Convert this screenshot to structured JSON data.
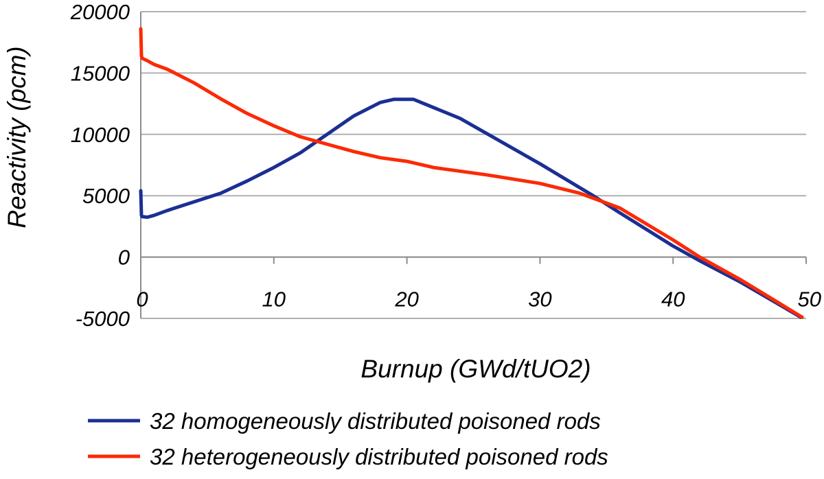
{
  "chart_data": {
    "type": "line",
    "title": "",
    "xlabel": "Burnup (GWd/tUO2)",
    "ylabel": "Reactivity (pcm)",
    "xlim": [
      0,
      50
    ],
    "ylim": [
      -5000,
      20000
    ],
    "x_ticks": [
      "0",
      "10",
      "20",
      "30",
      "40",
      "50"
    ],
    "y_ticks": [
      "20000",
      "15000",
      "10000",
      "5000",
      "0",
      "-5000"
    ],
    "grid": "horizontal",
    "legend_position": "bottom",
    "series": [
      {
        "name": "32 homogeneously distributed poisoned rods",
        "color": "#1b2f93",
        "x": [
          0,
          0.05,
          0.1,
          0.5,
          1,
          2,
          4,
          6,
          8,
          10,
          12,
          14,
          16,
          18,
          19,
          20,
          20.5,
          24,
          30,
          34,
          36,
          40,
          42,
          45,
          49.6
        ],
        "y": [
          5400,
          3400,
          3300,
          3250,
          3400,
          3800,
          4500,
          5200,
          6200,
          7300,
          8500,
          10000,
          11500,
          12600,
          12850,
          12850,
          12850,
          11300,
          7600,
          5000,
          3600,
          900,
          -300,
          -2000,
          -4900
        ]
      },
      {
        "name": "32 heterogeneously distributed poisoned rods",
        "color": "#fb2a06",
        "x": [
          0,
          0.05,
          0.1,
          0.5,
          1,
          2,
          4,
          6,
          8,
          10,
          12,
          14,
          16,
          18,
          20,
          22,
          26,
          30,
          33,
          36,
          40,
          42,
          45,
          49.7
        ],
        "y": [
          18600,
          16400,
          16200,
          16000,
          15700,
          15300,
          14200,
          12900,
          11700,
          10700,
          9800,
          9200,
          8600,
          8100,
          7800,
          7300,
          6700,
          6000,
          5200,
          4000,
          1400,
          0,
          -1800,
          -4900
        ]
      }
    ]
  }
}
